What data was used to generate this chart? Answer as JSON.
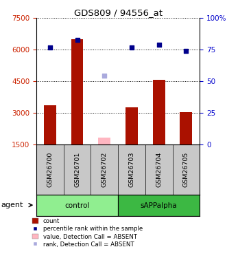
{
  "title": "GDS809 / 94556_at",
  "categories": [
    "GSM26700",
    "GSM26701",
    "GSM26702",
    "GSM26703",
    "GSM26704",
    "GSM26705"
  ],
  "groups": [
    "control",
    "control",
    "control",
    "sAPPalpha",
    "sAPPalpha",
    "sAPPalpha"
  ],
  "group_colors": {
    "control": "#90EE90",
    "sAPPalpha": "#3CB843"
  },
  "bar_values": [
    3350,
    6500,
    1820,
    3270,
    4580,
    3020
  ],
  "bar_absent": [
    null,
    null,
    1820,
    null,
    null,
    null
  ],
  "dot_values": [
    6100,
    6450,
    4750,
    6100,
    6250,
    5950
  ],
  "dot_absent": [
    null,
    null,
    4750,
    null,
    null,
    null
  ],
  "bar_color": "#AA1100",
  "bar_absent_color": "#FFB6C1",
  "dot_color": "#00008B",
  "dot_absent_color": "#AAAADD",
  "ylim_left": [
    1500,
    7500
  ],
  "ylim_right": [
    0,
    100
  ],
  "yticks_left": [
    1500,
    3000,
    4500,
    6000,
    7500
  ],
  "yticks_right": [
    0,
    25,
    50,
    75,
    100
  ],
  "ytick_right_labels": [
    "0",
    "25",
    "50",
    "75",
    "100%"
  ],
  "ylabel_left_color": "#CC2200",
  "ylabel_right_color": "#0000CC",
  "legend_items": [
    {
      "label": "count",
      "color": "#AA1100",
      "is_dot": false
    },
    {
      "label": "percentile rank within the sample",
      "color": "#00008B",
      "is_dot": true
    },
    {
      "label": "value, Detection Call = ABSENT",
      "color": "#FFB6C1",
      "is_dot": false
    },
    {
      "label": "rank, Detection Call = ABSENT",
      "color": "#AAAADD",
      "is_dot": true
    }
  ],
  "agent_label": "agent",
  "background_color": "#ffffff",
  "label_row_bg": "#C8C8C8",
  "plot_bg": "#ffffff"
}
